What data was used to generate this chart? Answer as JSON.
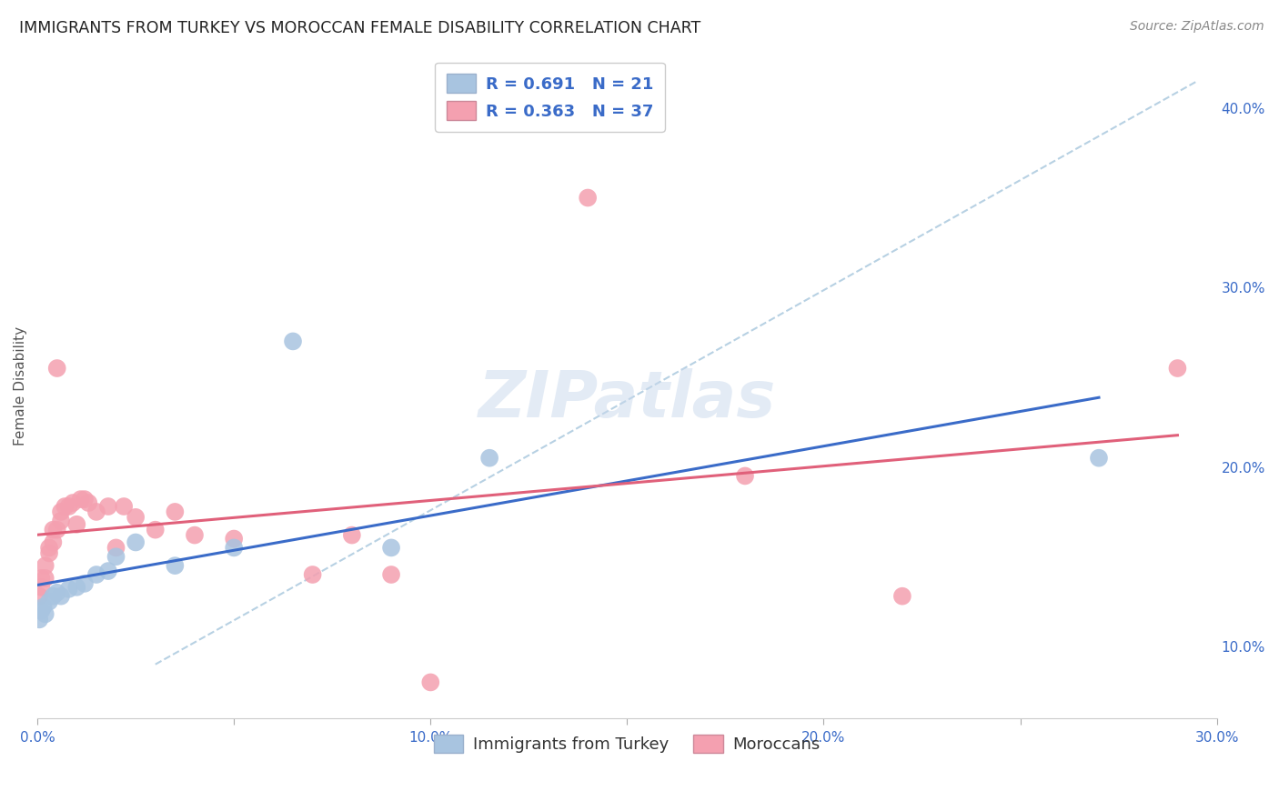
{
  "title": "IMMIGRANTS FROM TURKEY VS MOROCCAN FEMALE DISABILITY CORRELATION CHART",
  "source": "Source: ZipAtlas.com",
  "xlabel_blue": "Immigrants from Turkey",
  "xlabel_pink": "Moroccans",
  "ylabel": "Female Disability",
  "watermark": "ZIPatlas",
  "blue_R": 0.691,
  "blue_N": 21,
  "pink_R": 0.363,
  "pink_N": 37,
  "x_min": 0.0,
  "x_max": 0.3,
  "y_min": 0.06,
  "y_max": 0.43,
  "blue_scatter": [
    [
      0.0005,
      0.115
    ],
    [
      0.001,
      0.12
    ],
    [
      0.0015,
      0.122
    ],
    [
      0.002,
      0.118
    ],
    [
      0.003,
      0.125
    ],
    [
      0.004,
      0.128
    ],
    [
      0.005,
      0.13
    ],
    [
      0.006,
      0.128
    ],
    [
      0.008,
      0.132
    ],
    [
      0.01,
      0.133
    ],
    [
      0.012,
      0.135
    ],
    [
      0.015,
      0.14
    ],
    [
      0.018,
      0.142
    ],
    [
      0.02,
      0.15
    ],
    [
      0.025,
      0.158
    ],
    [
      0.035,
      0.145
    ],
    [
      0.05,
      0.155
    ],
    [
      0.065,
      0.27
    ],
    [
      0.09,
      0.155
    ],
    [
      0.115,
      0.205
    ],
    [
      0.27,
      0.205
    ]
  ],
  "pink_scatter": [
    [
      0.0005,
      0.128
    ],
    [
      0.001,
      0.133
    ],
    [
      0.001,
      0.138
    ],
    [
      0.002,
      0.138
    ],
    [
      0.002,
      0.145
    ],
    [
      0.003,
      0.152
    ],
    [
      0.003,
      0.155
    ],
    [
      0.004,
      0.158
    ],
    [
      0.004,
      0.165
    ],
    [
      0.005,
      0.165
    ],
    [
      0.005,
      0.255
    ],
    [
      0.006,
      0.17
    ],
    [
      0.006,
      0.175
    ],
    [
      0.007,
      0.178
    ],
    [
      0.008,
      0.178
    ],
    [
      0.009,
      0.18
    ],
    [
      0.01,
      0.168
    ],
    [
      0.011,
      0.182
    ],
    [
      0.012,
      0.182
    ],
    [
      0.013,
      0.18
    ],
    [
      0.015,
      0.175
    ],
    [
      0.018,
      0.178
    ],
    [
      0.02,
      0.155
    ],
    [
      0.022,
      0.178
    ],
    [
      0.025,
      0.172
    ],
    [
      0.03,
      0.165
    ],
    [
      0.035,
      0.175
    ],
    [
      0.04,
      0.162
    ],
    [
      0.05,
      0.16
    ],
    [
      0.07,
      0.14
    ],
    [
      0.08,
      0.162
    ],
    [
      0.09,
      0.14
    ],
    [
      0.1,
      0.08
    ],
    [
      0.14,
      0.35
    ],
    [
      0.18,
      0.195
    ],
    [
      0.22,
      0.128
    ],
    [
      0.29,
      0.255
    ]
  ],
  "blue_color": "#a8c4e0",
  "pink_color": "#f4a0b0",
  "blue_line_color": "#3a6bc8",
  "pink_line_color": "#e0607a",
  "dash_line_color": "#b0cce0",
  "title_fontsize": 12.5,
  "source_fontsize": 10,
  "legend_fontsize": 13,
  "axis_label_fontsize": 11,
  "tick_fontsize": 11,
  "watermark_fontsize": 52,
  "background_color": "#ffffff",
  "grid_color": "#d0d8e8",
  "right_ytick_labels": [
    "10.0%",
    "20.0%",
    "30.0%",
    "40.0%"
  ],
  "right_ytick_vals": [
    0.1,
    0.2,
    0.3,
    0.4
  ],
  "xtick_labels": [
    "0.0%",
    "",
    "10.0%",
    "",
    "20.0%",
    "",
    "30.0%"
  ],
  "xtick_vals": [
    0.0,
    0.05,
    0.1,
    0.15,
    0.2,
    0.25,
    0.3
  ]
}
